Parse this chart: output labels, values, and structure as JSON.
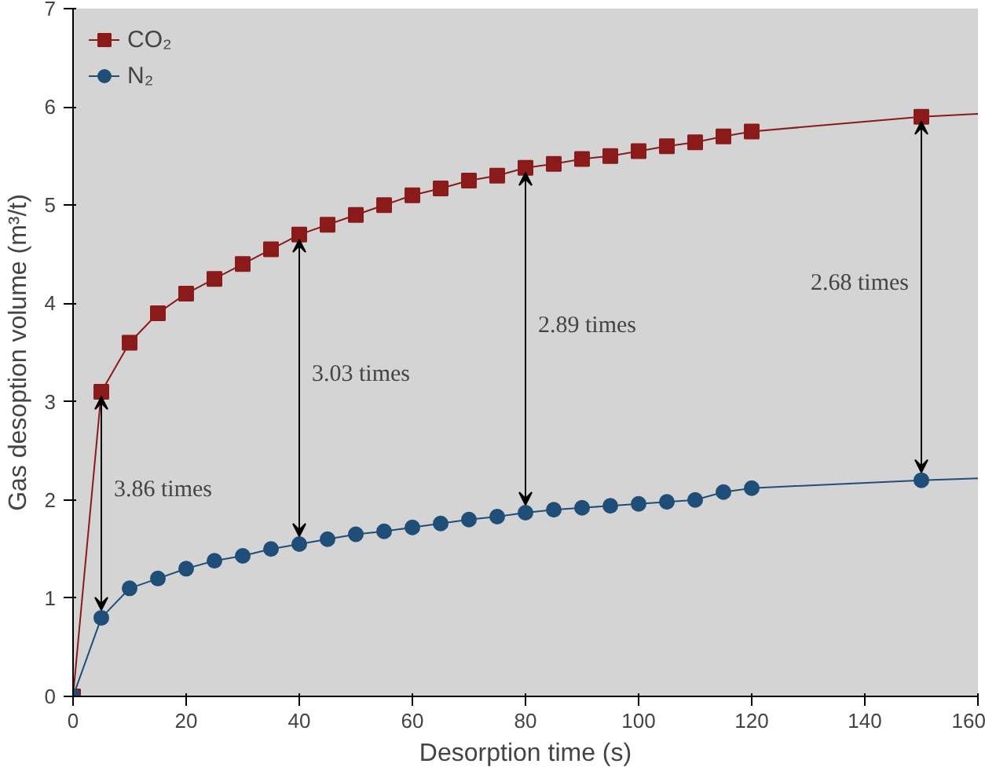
{
  "chart_data": {
    "type": "line",
    "xlabel": "Desorption time (s)",
    "ylabel": "Gas desoption volume (m³/t)",
    "xlim": [
      0,
      160
    ],
    "ylim": [
      0,
      7
    ],
    "xticks": [
      0,
      20,
      40,
      60,
      80,
      100,
      120,
      140,
      160
    ],
    "yticks": [
      0,
      1,
      2,
      3,
      4,
      5,
      6,
      7
    ],
    "grid": false,
    "legend": "top left",
    "series": [
      {
        "name": "CO₂",
        "color": "#8b1a1a",
        "marker": "square",
        "x": [
          0,
          5,
          10,
          15,
          20,
          25,
          30,
          35,
          40,
          45,
          50,
          55,
          60,
          65,
          70,
          75,
          80,
          85,
          90,
          95,
          100,
          105,
          110,
          115,
          120,
          150
        ],
        "values": [
          0,
          3.1,
          3.6,
          3.9,
          4.1,
          4.25,
          4.4,
          4.55,
          4.7,
          4.8,
          4.9,
          5.0,
          5.1,
          5.17,
          5.25,
          5.3,
          5.38,
          5.42,
          5.47,
          5.5,
          5.55,
          5.6,
          5.64,
          5.7,
          5.75,
          5.9
        ]
      },
      {
        "name": "N₂",
        "color": "#1f4e79",
        "marker": "circle",
        "x": [
          0,
          5,
          10,
          15,
          20,
          25,
          30,
          35,
          40,
          45,
          50,
          55,
          60,
          65,
          70,
          75,
          80,
          85,
          90,
          95,
          100,
          105,
          110,
          115,
          120,
          150
        ],
        "values": [
          0,
          0.8,
          1.1,
          1.2,
          1.3,
          1.38,
          1.43,
          1.5,
          1.55,
          1.6,
          1.65,
          1.68,
          1.72,
          1.76,
          1.8,
          1.83,
          1.87,
          1.9,
          1.92,
          1.94,
          1.96,
          1.98,
          2.0,
          2.08,
          2.12,
          2.2
        ]
      },
      {
        "color": "#8b1a1a",
        "marker": "none",
        "x": [
          150,
          160
        ],
        "values": [
          5.9,
          5.93
        ]
      },
      {
        "color": "#1f4e79",
        "marker": "none",
        "x": [
          150,
          160
        ],
        "values": [
          2.2,
          2.22
        ]
      }
    ],
    "annotations": [
      "3.86 times",
      "3.03 times",
      "2.89 times",
      "2.68 times"
    ]
  }
}
